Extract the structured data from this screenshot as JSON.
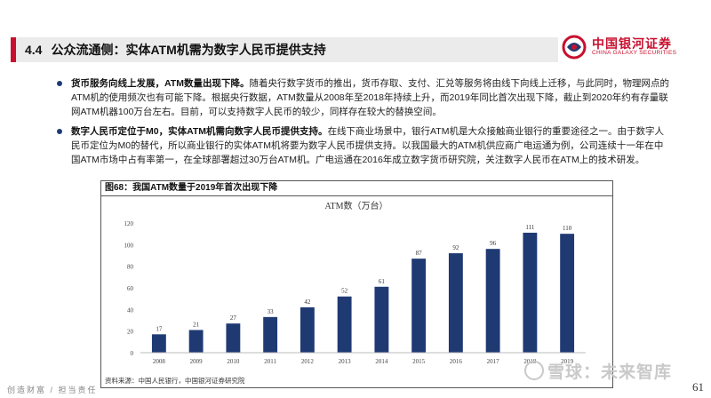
{
  "header": {
    "section_no": "4.4",
    "section_title": "公众流通侧：实体ATM机需为数字人民币提供支持",
    "logo": {
      "cn": "中国银河证券",
      "en": "CHINA GALAXY SECURITIES",
      "brand_color": "#c8102e"
    }
  },
  "bullets": [
    {
      "lead": "货币服务向线上发展，ATM数量出现下降。",
      "text": "随着央行数字货币的推出，货币存取、支付、汇兑等服务将由线下向线上迁移，与此同时，物理网点的ATM机的使用频次也有可能下降。根据央行数据，ATM数量从2008年至2018年持续上升，而2019年同比首次出现下降，截止到2020年约有存量联网ATM机器100万台左右。目前，可以支持数字人民币的较少，同样存在较大的替换空间。"
    },
    {
      "lead": "数字人民币定位于M0，实体ATM机需向数字人民币提供支持。",
      "text": "在线下商业场景中，银行ATM机是大众接触商业银行的重要途径之一。由于数字人民币定位为M0的替代，所以商业银行的实体ATM机将要为数字人民币提供支持。以我国最大的ATM机供应商广电运通为例，公司连续十一年在中国ATM市场中占有率第一，在全球部署超过30万台ATM机。广电运通在2016年成立数字货币研究院，关注数字人民币在ATM上的技术研发。"
    }
  ],
  "figure": {
    "label": "图68：我国ATM数量于2019年首次出现下降",
    "source": "资料来源：中国人民银行，中国银河证券研究院"
  },
  "chart_data": {
    "type": "bar",
    "title": "ATM数（万台）",
    "categories": [
      "2008",
      "2009",
      "2010",
      "2011",
      "2012",
      "2013",
      "2014",
      "2015",
      "2016",
      "2017",
      "2018",
      "2019"
    ],
    "values": [
      17,
      21,
      27,
      33,
      42,
      52,
      61,
      87,
      92,
      96,
      111,
      110
    ],
    "data_labels": [
      "17",
      "21",
      "27",
      "33",
      "42",
      "52",
      "61",
      "87",
      "92",
      "96",
      "111",
      "110"
    ],
    "ylim": [
      0,
      120
    ],
    "yticks": [
      0,
      20,
      40,
      60,
      80,
      100,
      120
    ],
    "grid": false,
    "bar_color": "#1f3a73",
    "legend": "none"
  },
  "footer": {
    "motto": "创造财富 / 担当责任",
    "page_number": "61",
    "watermark": "雪球：未来智库"
  }
}
